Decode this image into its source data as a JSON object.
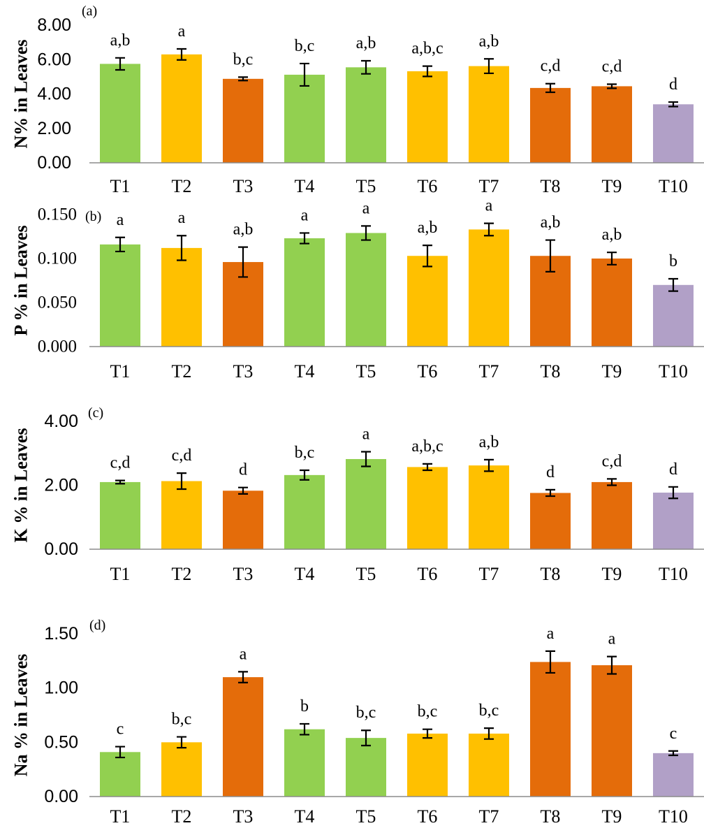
{
  "chart_data": [
    {
      "type": "bar",
      "panel": "(a)",
      "ylabel": "N% in Leaves",
      "ylim": [
        0,
        8
      ],
      "yticks": [
        "0.00",
        "2.00",
        "4.00",
        "6.00",
        "8.00"
      ],
      "yticks_values": [
        0,
        2,
        4,
        6,
        8
      ],
      "categories": [
        "T1",
        "T2",
        "T3",
        "T4",
        "T5",
        "T6",
        "T7",
        "T8",
        "T9",
        "T10"
      ],
      "values": [
        5.75,
        6.3,
        4.88,
        5.12,
        5.55,
        5.32,
        5.62,
        4.35,
        4.45,
        3.4
      ],
      "errors": [
        0.35,
        0.32,
        0.1,
        0.65,
        0.38,
        0.3,
        0.42,
        0.25,
        0.12,
        0.13
      ],
      "significance": [
        "a,b",
        "a",
        "b,c",
        "b,c",
        "a,b",
        "a,b,c",
        "a,b",
        "c,d",
        "c,d",
        "d"
      ],
      "colors": [
        "#92d050",
        "#ffc000",
        "#e46c0a",
        "#92d050",
        "#92d050",
        "#ffc000",
        "#ffc000",
        "#e46c0a",
        "#e46c0a",
        "#b1a0c7"
      ],
      "grid": false
    },
    {
      "type": "bar",
      "panel": "(b)",
      "ylabel": "P % in Leaves",
      "ylim": [
        0,
        0.15
      ],
      "yticks": [
        "0.000",
        "0.050",
        "0.100",
        "0.150"
      ],
      "yticks_values": [
        0,
        0.05,
        0.1,
        0.15
      ],
      "categories": [
        "T1",
        "T2",
        "T3",
        "T4",
        "T5",
        "T6",
        "T7",
        "T8",
        "T9",
        "T10"
      ],
      "values": [
        0.116,
        0.112,
        0.096,
        0.123,
        0.129,
        0.103,
        0.133,
        0.103,
        0.1,
        0.07
      ],
      "errors": [
        0.008,
        0.014,
        0.017,
        0.006,
        0.008,
        0.012,
        0.007,
        0.018,
        0.007,
        0.007
      ],
      "significance": [
        "a",
        "a",
        "a,b",
        "a",
        "a",
        "a,b",
        "a",
        "a,b",
        "a,b",
        "b"
      ],
      "colors": [
        "#92d050",
        "#ffc000",
        "#e46c0a",
        "#92d050",
        "#92d050",
        "#ffc000",
        "#ffc000",
        "#e46c0a",
        "#e46c0a",
        "#b1a0c7"
      ],
      "grid": false
    },
    {
      "type": "bar",
      "panel": "(c)",
      "ylabel": "K % in Leaves",
      "ylim": [
        0,
        4
      ],
      "yticks": [
        "0.00",
        "2.00",
        "4.00"
      ],
      "yticks_values": [
        0,
        2,
        4
      ],
      "categories": [
        "T1",
        "T2",
        "T3",
        "T4",
        "T5",
        "T6",
        "T7",
        "T8",
        "T9",
        "T10"
      ],
      "values": [
        2.1,
        2.13,
        1.83,
        2.32,
        2.82,
        2.57,
        2.62,
        1.76,
        2.1,
        1.77
      ],
      "errors": [
        0.05,
        0.25,
        0.1,
        0.15,
        0.23,
        0.1,
        0.18,
        0.1,
        0.1,
        0.18
      ],
      "significance": [
        "c,d",
        "c,d",
        "d",
        "b,c",
        "a",
        "a,b,c",
        "a,b",
        "d",
        "c,d",
        "d"
      ],
      "colors": [
        "#92d050",
        "#ffc000",
        "#e46c0a",
        "#92d050",
        "#92d050",
        "#ffc000",
        "#ffc000",
        "#e46c0a",
        "#e46c0a",
        "#b1a0c7"
      ],
      "grid": false
    },
    {
      "type": "bar",
      "panel": "(d)",
      "ylabel": "Na % in Leaves",
      "ylim": [
        0,
        1.5
      ],
      "yticks": [
        "0.00",
        "0.50",
        "1.00",
        "1.50"
      ],
      "yticks_values": [
        0,
        0.5,
        1.0,
        1.5
      ],
      "categories": [
        "T1",
        "T2",
        "T3",
        "T4",
        "T5",
        "T6",
        "T7",
        "T8",
        "T9",
        "T10"
      ],
      "values": [
        0.41,
        0.5,
        1.1,
        0.62,
        0.54,
        0.58,
        0.58,
        1.24,
        1.21,
        0.4
      ],
      "errors": [
        0.05,
        0.05,
        0.05,
        0.05,
        0.07,
        0.04,
        0.05,
        0.1,
        0.08,
        0.02
      ],
      "significance": [
        "c",
        "b,c",
        "a",
        "b",
        "b,c",
        "b,c",
        "b,c",
        "a",
        "a",
        "c"
      ],
      "colors": [
        "#92d050",
        "#ffc000",
        "#e46c0a",
        "#92d050",
        "#92d050",
        "#ffc000",
        "#ffc000",
        "#e46c0a",
        "#e46c0a",
        "#b1a0c7"
      ],
      "grid": false
    }
  ]
}
